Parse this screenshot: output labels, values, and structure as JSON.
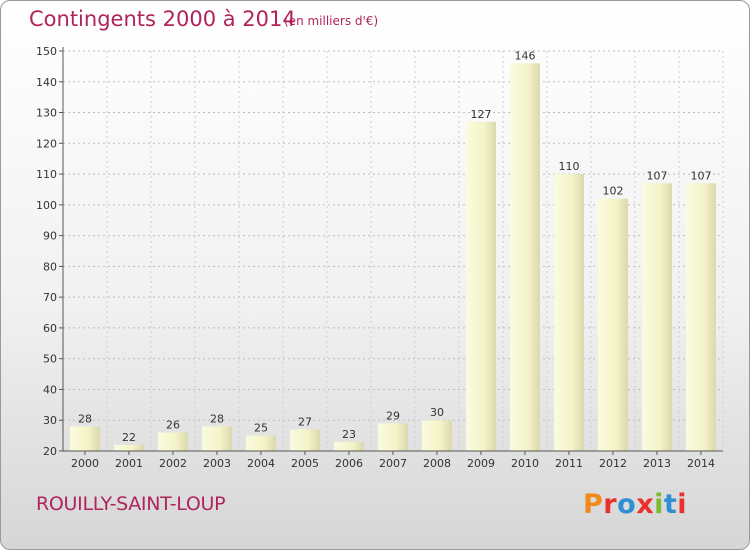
{
  "header": {
    "title": "Contingents 2000 à 2014",
    "subtitle": "(en milliers d'€)"
  },
  "footer": {
    "commune": "ROUILLY-SAINT-LOUP",
    "logo_text": "Proxiti"
  },
  "colors": {
    "title": "#b0245c",
    "bar_fill": "#f6f6cc",
    "bar_shadow": "#c9c9a0",
    "axis": "#555555",
    "logo_letters": [
      "#f08a1c",
      "#e8302c",
      "#2f8fd3",
      "#e8302c",
      "#7cba2f",
      "#2f8fd3",
      "#e8302c"
    ]
  },
  "chart_data": {
    "type": "bar",
    "categories": [
      "2000",
      "2001",
      "2002",
      "2003",
      "2004",
      "2005",
      "2006",
      "2007",
      "2008",
      "2009",
      "2010",
      "2011",
      "2012",
      "2013",
      "2014"
    ],
    "values": [
      28,
      22,
      26,
      28,
      25,
      27,
      23,
      29,
      30,
      127,
      146,
      110,
      102,
      107,
      107
    ],
    "title": "Contingents 2000 à 2014",
    "xlabel": "",
    "ylabel": "",
    "ylim": [
      20,
      150
    ],
    "yticks": [
      20,
      30,
      40,
      50,
      60,
      70,
      80,
      90,
      100,
      110,
      120,
      130,
      140,
      150
    ],
    "grid": true,
    "data_labels": true
  }
}
